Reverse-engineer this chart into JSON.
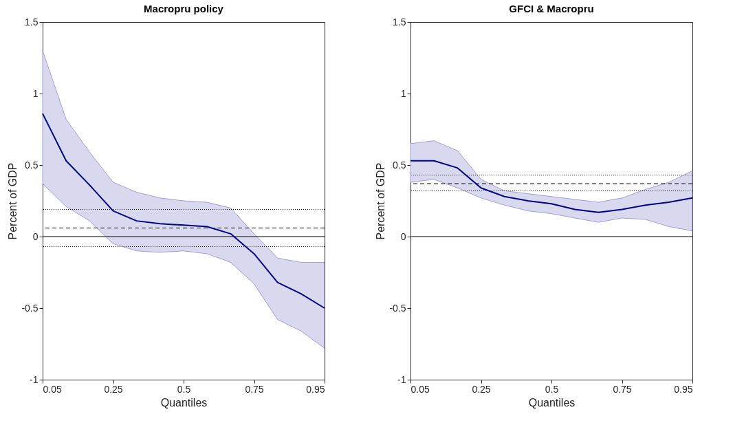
{
  "chart_data": [
    {
      "type": "line",
      "title": "Macropru policy",
      "xlabel": "Quantiles",
      "ylabel": "Percent of GDP",
      "categories": [
        "0.05",
        null,
        null,
        "0.25",
        null,
        null,
        "0.5",
        null,
        null,
        "0.75",
        null,
        null,
        "0.95"
      ],
      "series": [
        {
          "color": "#00008b",
          "values": [
            0.86,
            0.53,
            0.36,
            0.18,
            0.11,
            0.09,
            0.08,
            0.07,
            0.02,
            -0.12,
            -0.32,
            -0.4,
            -0.5
          ],
          "lower": [
            0.37,
            0.21,
            0.11,
            -0.05,
            -0.1,
            -0.11,
            -0.1,
            -0.12,
            -0.18,
            -0.33,
            -0.58,
            -0.66,
            -0.78
          ],
          "upper": [
            1.3,
            0.82,
            0.59,
            0.38,
            0.31,
            0.27,
            0.25,
            0.24,
            0.2,
            0.02,
            -0.15,
            -0.18,
            -0.18
          ]
        }
      ],
      "ref_lines": [
        {
          "axis": "y",
          "value": 0,
          "color": "#000000",
          "line_style": "solid"
        },
        {
          "axis": "y",
          "value": 0.06,
          "color": "#000000",
          "line_style": "dashed"
        },
        {
          "axis": "y",
          "value": 0.19,
          "color": "#000000",
          "line_style": "dotted"
        },
        {
          "axis": "y",
          "value": -0.07,
          "color": "#000000",
          "line_style": "dotted"
        }
      ],
      "ylim": [
        -1,
        1.5
      ],
      "yticks": [
        -1,
        -0.5,
        0,
        0.5,
        1,
        1.5
      ],
      "grid": false,
      "line_style": "solid",
      "marker": "none"
    },
    {
      "type": "line",
      "title": "GFCI & Macropru",
      "xlabel": "Quantiles",
      "ylabel": "Percent of GDP",
      "categories": [
        "0.05",
        null,
        null,
        "0.25",
        null,
        null,
        "0.5",
        null,
        null,
        "0.75",
        null,
        null,
        "0.95"
      ],
      "series": [
        {
          "color": "#00008b",
          "values": [
            0.53,
            0.53,
            0.48,
            0.34,
            0.28,
            0.25,
            0.23,
            0.19,
            0.17,
            0.19,
            0.22,
            0.24,
            0.27
          ],
          "lower": [
            0.38,
            0.4,
            0.34,
            0.27,
            0.22,
            0.18,
            0.16,
            0.13,
            0.1,
            0.13,
            0.12,
            0.07,
            0.04
          ],
          "upper": [
            0.65,
            0.67,
            0.6,
            0.4,
            0.32,
            0.3,
            0.28,
            0.26,
            0.24,
            0.27,
            0.33,
            0.38,
            0.46
          ]
        }
      ],
      "ref_lines": [
        {
          "axis": "y",
          "value": 0,
          "color": "#000000",
          "line_style": "solid"
        },
        {
          "axis": "y",
          "value": 0.37,
          "color": "#000000",
          "line_style": "dashed"
        },
        {
          "axis": "y",
          "value": 0.43,
          "color": "#000000",
          "line_style": "dotted"
        },
        {
          "axis": "y",
          "value": 0.32,
          "color": "#000000",
          "line_style": "dotted"
        }
      ],
      "ylim": [
        -1,
        1.5
      ],
      "yticks": [
        -1,
        -0.5,
        0,
        0.5,
        1,
        1.5
      ],
      "grid": false,
      "line_style": "solid",
      "marker": "none"
    }
  ]
}
